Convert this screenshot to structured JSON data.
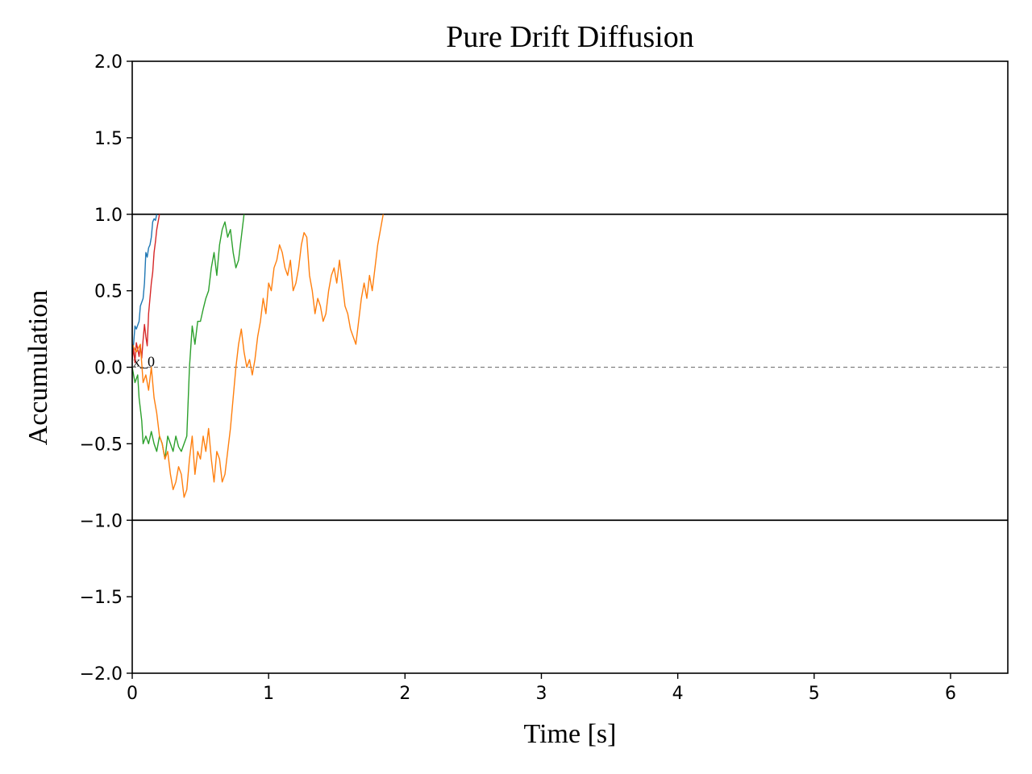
{
  "chart_data": {
    "type": "line",
    "title": "Pure Drift Diffusion",
    "xlabel": "Time [s]",
    "ylabel": "Accumulation",
    "xlim": [
      0,
      6.42
    ],
    "ylim": [
      -2.0,
      2.0
    ],
    "xticks": [
      0,
      1,
      2,
      3,
      4,
      5,
      6
    ],
    "yticks": [
      2.0,
      1.5,
      1.0,
      0.5,
      0.0,
      -0.5,
      -1.0,
      -1.5,
      -2.0
    ],
    "xtick_labels": [
      "0",
      "1",
      "2",
      "3",
      "4",
      "5",
      "6"
    ],
    "ytick_labels": [
      "2.0",
      "1.5",
      "1.0",
      "0.5",
      "0.0",
      "−0.5",
      "−1.0",
      "−1.5",
      "−2.0"
    ],
    "grid": false,
    "legend": "none",
    "bounds": [
      {
        "y": 1.0,
        "style": "solid",
        "color": "#000000"
      },
      {
        "y": -1.0,
        "style": "solid",
        "color": "#000000"
      },
      {
        "y": 0.0,
        "style": "dashed",
        "color": "#808080"
      }
    ],
    "annotations": [
      {
        "text": "x_0",
        "x": 0.0,
        "y": 0.0
      }
    ],
    "series": [
      {
        "color": "#1f77b4",
        "x": [
          0,
          0.01,
          0.02,
          0.03,
          0.05,
          0.06,
          0.08,
          0.09,
          0.1,
          0.11,
          0.12,
          0.13,
          0.14,
          0.15,
          0.16,
          0.17,
          0.18
        ],
        "y": [
          0.1,
          0.15,
          0.27,
          0.25,
          0.3,
          0.4,
          0.45,
          0.55,
          0.75,
          0.72,
          0.78,
          0.8,
          0.85,
          0.95,
          0.97,
          0.96,
          1.0
        ]
      },
      {
        "color": "#d62728",
        "x": [
          0,
          0.01,
          0.02,
          0.03,
          0.04,
          0.05,
          0.06,
          0.07,
          0.08,
          0.09,
          0.1,
          0.11,
          0.12,
          0.13,
          0.14,
          0.15,
          0.16,
          0.17,
          0.18,
          0.19,
          0.2
        ],
        "y": [
          0.05,
          0.12,
          0.03,
          0.16,
          0.12,
          0.07,
          0.14,
          0.06,
          0.18,
          0.28,
          0.2,
          0.14,
          0.35,
          0.45,
          0.55,
          0.62,
          0.75,
          0.82,
          0.9,
          0.95,
          1.0
        ]
      },
      {
        "color": "#2ca02c",
        "x": [
          0,
          0.02,
          0.04,
          0.05,
          0.07,
          0.08,
          0.1,
          0.12,
          0.14,
          0.16,
          0.18,
          0.2,
          0.22,
          0.24,
          0.26,
          0.28,
          0.3,
          0.32,
          0.34,
          0.36,
          0.38,
          0.4,
          0.42,
          0.44,
          0.46,
          0.48,
          0.5,
          0.52,
          0.54,
          0.56,
          0.58,
          0.6,
          0.62,
          0.64,
          0.66,
          0.68,
          0.7,
          0.72,
          0.74,
          0.76,
          0.78,
          0.8,
          0.82
        ],
        "y": [
          0,
          -0.1,
          -0.05,
          -0.2,
          -0.35,
          -0.5,
          -0.45,
          -0.5,
          -0.42,
          -0.5,
          -0.55,
          -0.45,
          -0.5,
          -0.6,
          -0.45,
          -0.5,
          -0.55,
          -0.45,
          -0.52,
          -0.55,
          -0.5,
          -0.45,
          0.0,
          0.27,
          0.15,
          0.3,
          0.3,
          0.38,
          0.45,
          0.5,
          0.65,
          0.75,
          0.6,
          0.8,
          0.9,
          0.95,
          0.85,
          0.9,
          0.75,
          0.65,
          0.7,
          0.85,
          1.0
        ]
      },
      {
        "color": "#ff7f0e",
        "x": [
          0,
          0.03,
          0.06,
          0.08,
          0.1,
          0.12,
          0.14,
          0.16,
          0.18,
          0.2,
          0.22,
          0.24,
          0.26,
          0.28,
          0.3,
          0.32,
          0.34,
          0.36,
          0.38,
          0.4,
          0.42,
          0.44,
          0.46,
          0.48,
          0.5,
          0.52,
          0.54,
          0.56,
          0.58,
          0.6,
          0.62,
          0.64,
          0.66,
          0.68,
          0.7,
          0.72,
          0.74,
          0.76,
          0.78,
          0.8,
          0.82,
          0.84,
          0.86,
          0.88,
          0.9,
          0.92,
          0.94,
          0.96,
          0.98,
          1.0,
          1.02,
          1.04,
          1.06,
          1.08,
          1.1,
          1.12,
          1.14,
          1.16,
          1.18,
          1.2,
          1.22,
          1.24,
          1.26,
          1.28,
          1.3,
          1.32,
          1.34,
          1.36,
          1.38,
          1.4,
          1.42,
          1.44,
          1.46,
          1.48,
          1.5,
          1.52,
          1.54,
          1.56,
          1.58,
          1.6,
          1.62,
          1.64,
          1.66,
          1.68,
          1.7,
          1.72,
          1.74,
          1.76,
          1.78,
          1.8,
          1.82,
          1.84
        ],
        "y": [
          0.15,
          0.1,
          0.15,
          -0.1,
          -0.05,
          -0.15,
          0.0,
          -0.2,
          -0.3,
          -0.45,
          -0.5,
          -0.6,
          -0.55,
          -0.7,
          -0.8,
          -0.75,
          -0.65,
          -0.7,
          -0.85,
          -0.8,
          -0.6,
          -0.45,
          -0.7,
          -0.55,
          -0.6,
          -0.45,
          -0.55,
          -0.4,
          -0.6,
          -0.75,
          -0.55,
          -0.6,
          -0.75,
          -0.7,
          -0.55,
          -0.4,
          -0.2,
          0.0,
          0.15,
          0.25,
          0.1,
          0.0,
          0.05,
          -0.05,
          0.05,
          0.2,
          0.3,
          0.45,
          0.35,
          0.55,
          0.5,
          0.65,
          0.7,
          0.8,
          0.75,
          0.65,
          0.6,
          0.7,
          0.5,
          0.55,
          0.65,
          0.8,
          0.88,
          0.85,
          0.6,
          0.5,
          0.35,
          0.45,
          0.4,
          0.3,
          0.35,
          0.5,
          0.6,
          0.65,
          0.55,
          0.7,
          0.55,
          0.4,
          0.35,
          0.25,
          0.2,
          0.15,
          0.3,
          0.45,
          0.55,
          0.45,
          0.6,
          0.5,
          0.65,
          0.8,
          0.9,
          1.0
        ]
      }
    ]
  }
}
